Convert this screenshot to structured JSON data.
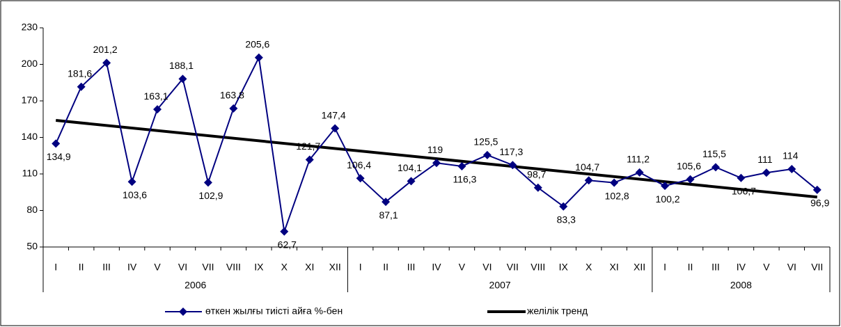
{
  "chart_data": {
    "type": "line",
    "groups": [
      {
        "label": "2006",
        "categories": [
          "I",
          "II",
          "III",
          "IV",
          "V",
          "VI",
          "VII",
          "VIII",
          "IX",
          "X",
          "XI",
          "XII"
        ]
      },
      {
        "label": "2007",
        "categories": [
          "I",
          "II",
          "III",
          "IV",
          "V",
          "VI",
          "VII",
          "VIII",
          "IX",
          "X",
          "XI",
          "XII"
        ]
      },
      {
        "label": "2008",
        "categories": [
          "I",
          "II",
          "III",
          "IV",
          "V",
          "VI",
          "VII"
        ]
      }
    ],
    "series": [
      {
        "name": "өткен жылғы тиісті айға %-бен",
        "color": "#000080",
        "values": [
          134.9,
          181.6,
          201.2,
          103.6,
          163.1,
          188.1,
          102.9,
          163.8,
          205.6,
          62.7,
          121.7,
          147.4,
          106.4,
          87.1,
          104.1,
          119,
          116.3,
          125.5,
          117.3,
          98.7,
          83.3,
          104.7,
          102.8,
          111.2,
          100.2,
          105.6,
          115.5,
          106.7,
          111,
          114,
          96.9
        ],
        "value_labels": [
          "134,9",
          "181,6",
          "201,2",
          "103,6",
          "163,1",
          "188,1",
          "102,9",
          "163,8",
          "205,6",
          "62,7",
          "121,7",
          "147,4",
          "106,4",
          "87,1",
          "104,1",
          "119",
          "116,3",
          "125,5",
          "117,3",
          "98,7",
          "83,3",
          "104,7",
          "102,8",
          "111,2",
          "100,2",
          "105,6",
          "115,5",
          "106,7",
          "111",
          "114",
          "96,9"
        ]
      }
    ],
    "trend": {
      "name": "желілік тренд",
      "color": "#000000",
      "start": 154,
      "end": 91
    },
    "ylim": [
      50,
      230
    ],
    "yticks": [
      50,
      80,
      110,
      140,
      170,
      200,
      230
    ],
    "grid": false
  }
}
